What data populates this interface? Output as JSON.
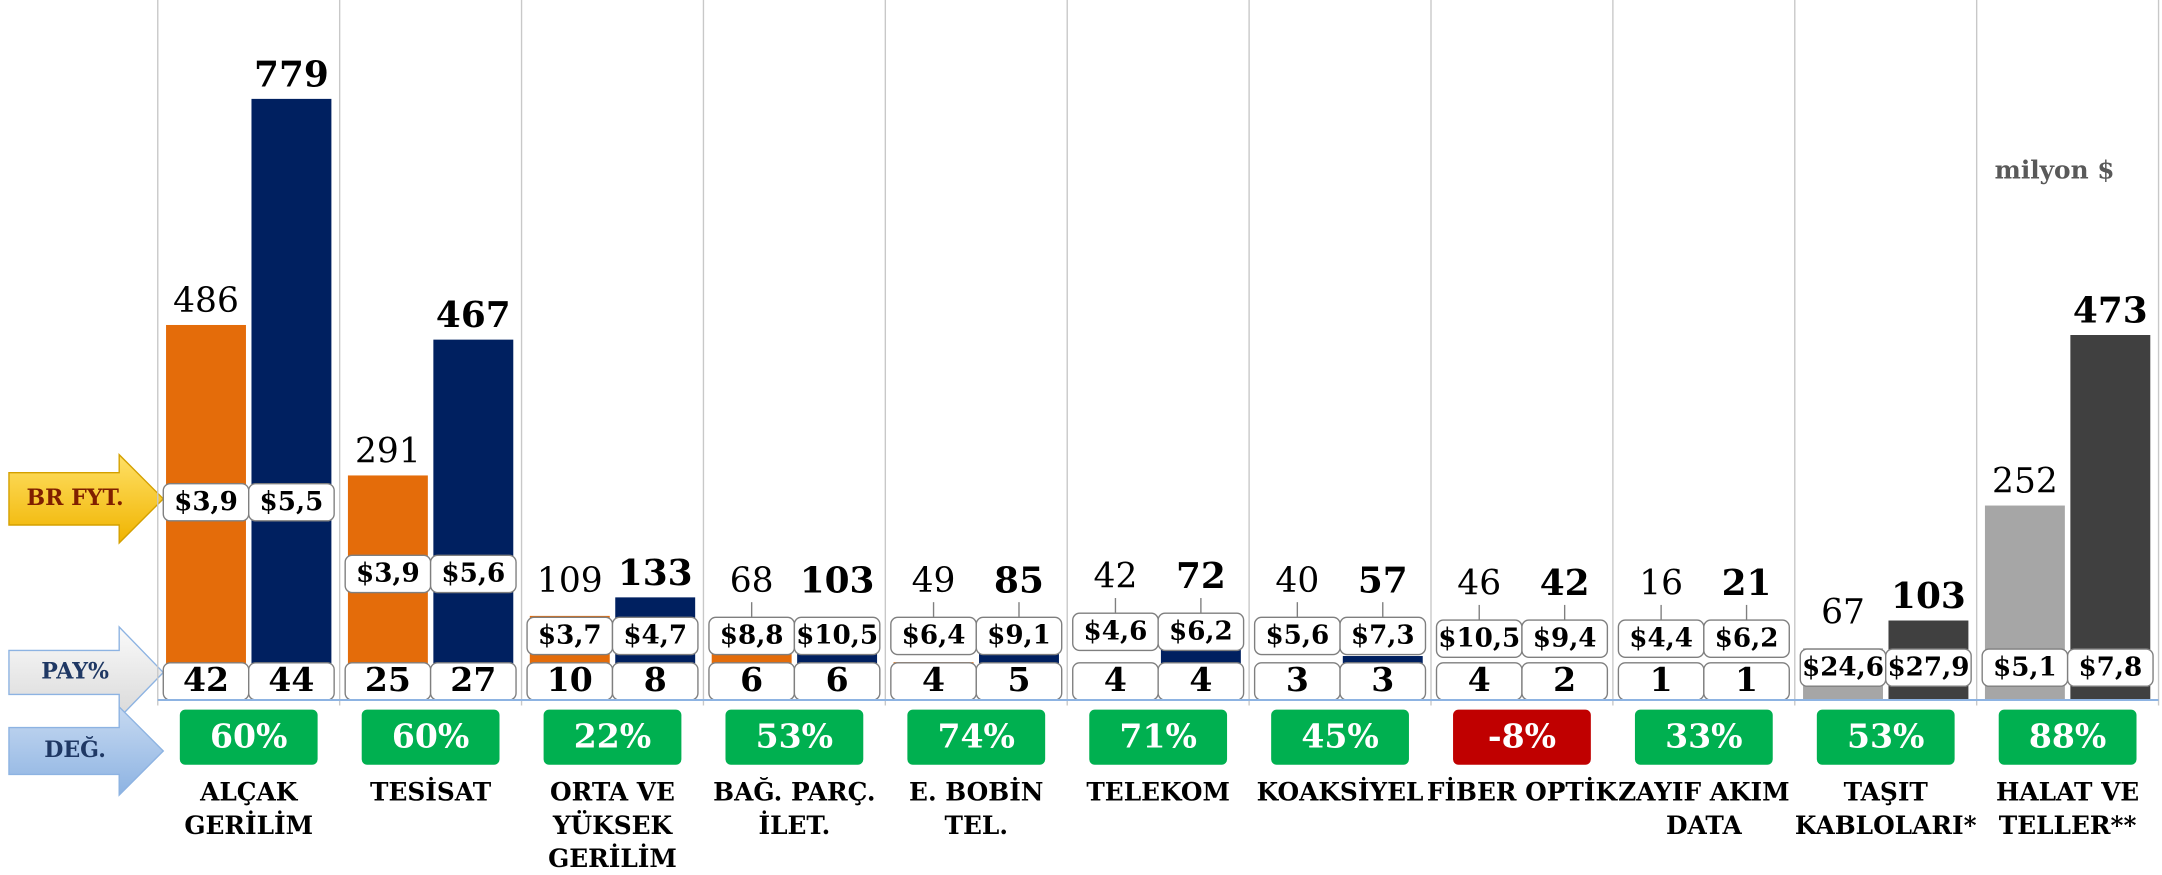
{
  "chart_data": {
    "type": "bar",
    "categories": [
      "ALÇAK\nGERİLİM",
      "TESİSAT",
      "ORTA VE\nYÜKSEK\nGERİLİM",
      "BAĞ. PARÇ.\nİLET.",
      "E. BOBİN\nTEL.",
      "TELEKOM",
      "KOAKSİYEL",
      "FİBER OPTİK",
      "ZAYIF AKIM\nDATA",
      "TAŞIT\nKABLOLARI*",
      "HALAT VE\nTELLER**"
    ],
    "row_labels": {
      "price": "BR FYT.",
      "share": "PAY%",
      "change": "DEĞ."
    },
    "unit_note": "milyon $",
    "series": [
      {
        "colors": [
          "#e46c0a",
          "#e46c0a",
          "#e46c0a",
          "#e46c0a",
          "#e46c0a",
          "#e46c0a",
          "#e46c0a",
          "#e46c0a",
          "#e46c0a",
          "#a6a6a6",
          "#a6a6a6"
        ],
        "values": [
          486,
          291,
          109,
          68,
          49,
          42,
          40,
          46,
          16,
          67,
          252
        ],
        "price_labels": [
          "$3,9",
          "$3,9",
          "$3,7",
          "$8,8",
          "$6,4",
          "$4,6",
          "$5,6",
          "$10,5",
          "$4,4",
          "$24,6",
          "$5,1"
        ],
        "shares": [
          42,
          25,
          10,
          6,
          4,
          4,
          3,
          4,
          1,
          null,
          null
        ]
      },
      {
        "colors": [
          "#002060",
          "#002060",
          "#002060",
          "#002060",
          "#002060",
          "#002060",
          "#002060",
          "#002060",
          "#002060",
          "#404040",
          "#404040"
        ],
        "values": [
          779,
          467,
          133,
          103,
          85,
          72,
          57,
          42,
          21,
          103,
          473
        ],
        "price_labels": [
          "$5,5",
          "$5,6",
          "$4,7",
          "$10,5",
          "$9,1",
          "$6,2",
          "$7,3",
          "$9,4",
          "$6,2",
          "$27,9",
          "$7,8"
        ],
        "shares": [
          44,
          27,
          8,
          6,
          5,
          4,
          3,
          2,
          1,
          null,
          null
        ]
      }
    ],
    "changes": [
      60,
      60,
      22,
      53,
      74,
      71,
      45,
      -8,
      33,
      53,
      88
    ],
    "change_labels": [
      "60%",
      "60%",
      "22%",
      "53%",
      "74%",
      "71%",
      "45%",
      "-8%",
      "33%",
      "53%",
      "88%"
    ],
    "ylim": [
      0,
      800
    ]
  }
}
